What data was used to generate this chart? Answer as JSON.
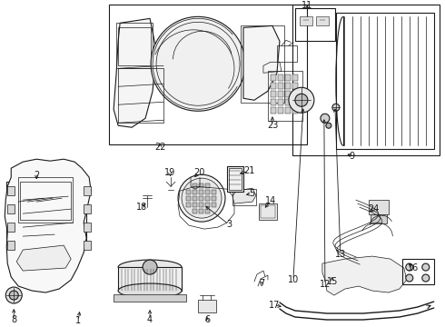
{
  "bg_color": "#ffffff",
  "line_color": "#1a1a1a",
  "figsize": [
    4.9,
    3.6
  ],
  "dpi": 100,
  "label_fs": 7,
  "boxes": {
    "b2": [
      7,
      198,
      88,
      72
    ],
    "b22": [
      120,
      5,
      218,
      155
    ],
    "b11": [
      322,
      7,
      48,
      38
    ],
    "b9": [
      322,
      7,
      158,
      165
    ]
  },
  "labels": {
    "1": [
      93,
      343,
      86,
      352
    ],
    "2": [
      40,
      198,
      40,
      194
    ],
    "3": [
      252,
      255,
      252,
      248
    ],
    "4": [
      165,
      341,
      165,
      350
    ],
    "5": [
      272,
      218,
      276,
      214
    ],
    "6": [
      228,
      341,
      228,
      350
    ],
    "7": [
      287,
      301,
      287,
      310
    ],
    "8": [
      15,
      341,
      15,
      350
    ],
    "9": [
      376,
      172,
      385,
      172
    ],
    "10": [
      330,
      298,
      323,
      307
    ],
    "11": [
      337,
      10,
      337,
      6
    ],
    "12": [
      354,
      303,
      357,
      312
    ],
    "13": [
      363,
      285,
      373,
      282
    ],
    "14": [
      299,
      228,
      299,
      222
    ],
    "15": [
      363,
      298,
      365,
      308
    ],
    "16": [
      447,
      284,
      453,
      293
    ],
    "17": [
      310,
      336,
      303,
      336
    ],
    "18": [
      162,
      218,
      157,
      227
    ],
    "19": [
      187,
      198,
      187,
      192
    ],
    "20": [
      210,
      198,
      218,
      192
    ],
    "21": [
      265,
      193,
      273,
      189
    ],
    "22": [
      176,
      158,
      176,
      162
    ],
    "23": [
      299,
      128,
      299,
      137
    ],
    "24": [
      404,
      234,
      410,
      232
    ]
  }
}
